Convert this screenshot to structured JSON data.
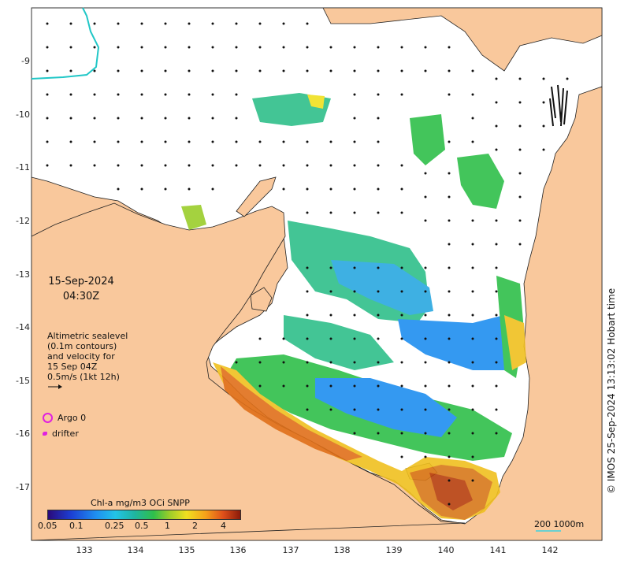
{
  "map": {
    "lon_ticks": [
      "133",
      "134",
      "135",
      "136",
      "137",
      "138",
      "139",
      "140",
      "141",
      "142"
    ],
    "lat_ticks": [
      "-9",
      "-10",
      "-11",
      "-12",
      "-13",
      "-14",
      "-15",
      "-16",
      "-17"
    ]
  },
  "date_label": {
    "line1": "15-Sep-2024",
    "line2": "04:30Z"
  },
  "legend": {
    "line1": "Altimetric sealevel",
    "line2": "(0.1m contours)",
    "line3": "and velocity for",
    "line4": "15 Sep 04Z",
    "line5": "0.5m/s (1kt 12h)",
    "argo": "Argo 0",
    "drifter": "drifter"
  },
  "colorbar": {
    "title": "Chl-a mg/m3 OCi SNPP",
    "labels": [
      "0.05",
      "0.1",
      "0.25",
      "0.5",
      "1",
      "2",
      "4"
    ]
  },
  "scale_bar": {
    "label": "200  1000m"
  },
  "copyright": "© IMOS 25-Sep-2024 13:13:02 Hobart time",
  "colors": {
    "land": "#f9c89c",
    "ocean": "#ffffff",
    "argo": "#e020e0"
  }
}
